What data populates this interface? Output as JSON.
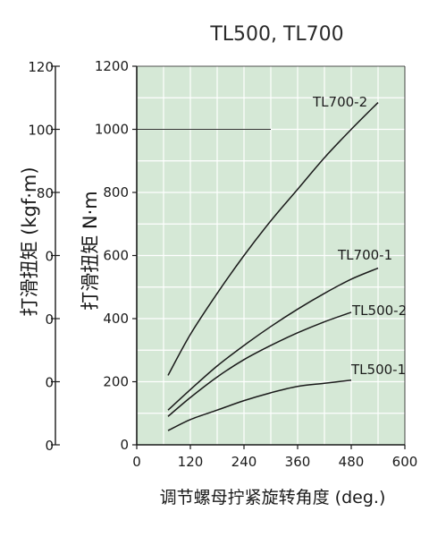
{
  "chart_data": {
    "type": "line",
    "title": "TL500, TL700",
    "xlabel": "调节螺母拧紧旋转角度 (deg.)",
    "ylabel": "打滑扭矩 N·m",
    "ylabel_secondary": "打滑扭矩 (kgf·m)",
    "xlim": [
      0,
      600
    ],
    "ylim": [
      0,
      1200
    ],
    "y2lim": [
      0,
      120
    ],
    "x_ticks": [
      0,
      120,
      240,
      360,
      480,
      600
    ],
    "y_ticks": [
      0,
      200,
      400,
      600,
      800,
      1000,
      1200
    ],
    "y2_ticks": [
      "120",
      "100",
      "80",
      "0",
      "0",
      "0",
      "0"
    ],
    "grid": true,
    "series": [
      {
        "name": "TL700-2",
        "x": [
          70,
          120,
          180,
          240,
          300,
          360,
          420,
          480,
          540
        ],
        "y": [
          220,
          350,
          480,
          600,
          710,
          810,
          910,
          1000,
          1085
        ]
      },
      {
        "name": "TL700-1",
        "x": [
          70,
          120,
          180,
          240,
          300,
          360,
          420,
          480,
          540
        ],
        "y": [
          110,
          175,
          250,
          315,
          375,
          430,
          480,
          525,
          560
        ]
      },
      {
        "name": "TL500-2",
        "x": [
          70,
          120,
          180,
          240,
          300,
          360,
          420,
          480
        ],
        "y": [
          90,
          150,
          215,
          270,
          315,
          355,
          390,
          420
        ]
      },
      {
        "name": "TL500-1",
        "x": [
          70,
          120,
          180,
          240,
          300,
          360,
          420,
          480
        ],
        "y": [
          45,
          80,
          110,
          140,
          165,
          185,
          195,
          205
        ]
      }
    ],
    "colors": {
      "plot_bg": "#d5e8d6",
      "grid": "#ffffff",
      "line": "#1a1a1a",
      "text": "#1a1a1a"
    }
  }
}
